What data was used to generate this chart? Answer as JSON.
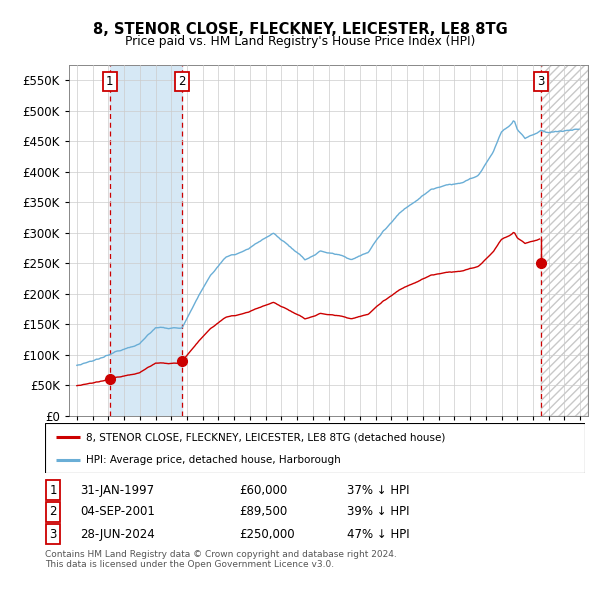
{
  "title": "8, STENOR CLOSE, FLECKNEY, LEICESTER, LE8 8TG",
  "subtitle": "Price paid vs. HM Land Registry's House Price Index (HPI)",
  "ylim": [
    0,
    575000
  ],
  "yticks": [
    0,
    50000,
    100000,
    150000,
    200000,
    250000,
    300000,
    350000,
    400000,
    450000,
    500000,
    550000
  ],
  "ytick_labels": [
    "£0",
    "£50K",
    "£100K",
    "£150K",
    "£200K",
    "£250K",
    "£300K",
    "£350K",
    "£400K",
    "£450K",
    "£500K",
    "£550K"
  ],
  "xlim_start": 1994.5,
  "xlim_end": 2027.5,
  "sale_dates": [
    1997.08,
    2001.67,
    2024.49
  ],
  "sale_prices": [
    60000,
    89500,
    250000
  ],
  "sale_labels": [
    "1",
    "2",
    "3"
  ],
  "sale_date_strings": [
    "31-JAN-1997",
    "04-SEP-2001",
    "28-JUN-2024"
  ],
  "sale_price_strings": [
    "£60,000",
    "£89,500",
    "£250,000"
  ],
  "sale_hpi_strings": [
    "37% ↓ HPI",
    "39% ↓ HPI",
    "47% ↓ HPI"
  ],
  "hpi_color": "#6aaed6",
  "price_color": "#cc0000",
  "dashed_color": "#cc0000",
  "shade_color": "#d6e8f5",
  "hatch_color": "#c8c8c8",
  "legend_label_price": "8, STENOR CLOSE, FLECKNEY, LEICESTER, LE8 8TG (detached house)",
  "legend_label_hpi": "HPI: Average price, detached house, Harborough",
  "footer": "Contains HM Land Registry data © Crown copyright and database right 2024.\nThis data is licensed under the Open Government Licence v3.0.",
  "background_color": "#ffffff",
  "grid_color": "#cccccc"
}
